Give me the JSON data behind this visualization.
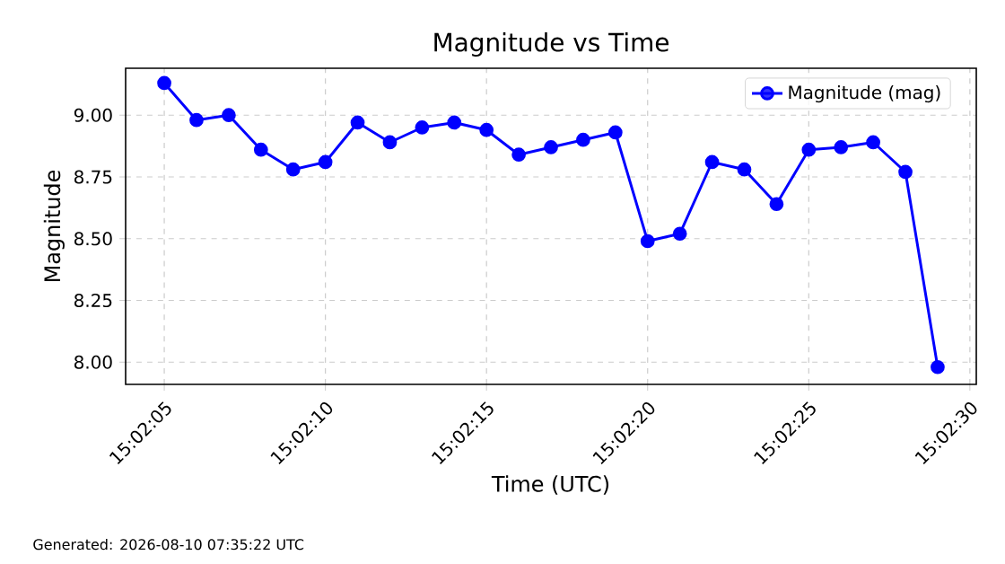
{
  "chart_data": {
    "type": "line",
    "title": "Magnitude vs Time",
    "xlabel": "Time (UTC)",
    "ylabel": "Magnitude",
    "annotations": [
      "Generated: 2026-08-10 07:35:22 UTC"
    ],
    "x": [
      15.0347222,
      15.035,
      15.0352778,
      15.0355556,
      15.0358333,
      15.0361111,
      15.0363889,
      15.0366667,
      15.0369444,
      15.0372222,
      15.0375,
      15.0377778,
      15.0380556,
      15.0383333,
      15.0386111,
      15.0388889,
      15.0391667,
      15.0394444,
      15.0397222,
      15.04,
      15.0402778,
      15.0405556,
      15.0408333,
      15.0411111,
      15.0413889
    ],
    "series": [
      {
        "name": "Magnitude (mag)",
        "color": "#0000ff",
        "values": [
          9.13,
          8.98,
          9.0,
          8.86,
          8.78,
          8.81,
          8.97,
          8.89,
          8.95,
          8.97,
          8.94,
          8.84,
          8.87,
          8.9,
          8.93,
          8.49,
          8.52,
          8.81,
          8.78,
          8.64,
          8.86,
          8.87,
          8.89,
          8.77,
          7.98
        ]
      }
    ],
    "xlim": [
      15.034389,
      15.041722
    ],
    "ylim": [
      7.91,
      9.19
    ],
    "xticks": [
      {
        "value": 15.0347222,
        "label": "15:02:05"
      },
      {
        "value": 15.0361111,
        "label": "15:02:10"
      },
      {
        "value": 15.0375,
        "label": "15:02:15"
      },
      {
        "value": 15.0388889,
        "label": "15:02:20"
      },
      {
        "value": 15.0402778,
        "label": "15:02:25"
      },
      {
        "value": 15.0416667,
        "label": "15:02:30"
      }
    ],
    "yticks": [
      {
        "value": 8,
        "label": "8.00"
      },
      {
        "value": 8.25,
        "label": "8.25"
      },
      {
        "value": 8.5,
        "label": "8.50"
      },
      {
        "value": 8.75,
        "label": "8.75"
      },
      {
        "value": 9,
        "label": "9.00"
      }
    ],
    "grid": true,
    "legend": "top right",
    "marker": "circle",
    "line_style": "solid"
  }
}
